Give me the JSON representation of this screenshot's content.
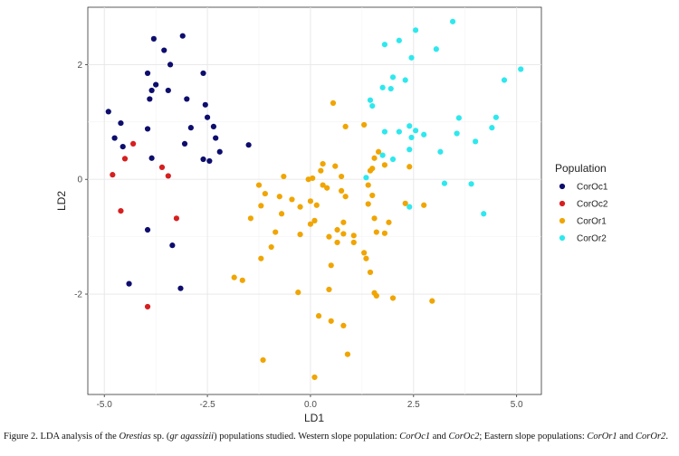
{
  "chart_data": {
    "type": "scatter",
    "xlabel": "LD1",
    "ylabel": "LD2",
    "xlim": [
      -5.4,
      5.6
    ],
    "ylim": [
      -3.75,
      3.0
    ],
    "xticks": [
      -5.0,
      -2.5,
      0.0,
      2.5,
      5.0
    ],
    "xtick_labels": [
      "-5.0",
      "-2.5",
      "0.0",
      "2.5",
      "5.0"
    ],
    "yticks": [
      -2,
      0,
      2
    ],
    "ytick_labels": [
      "-2",
      "0",
      "2"
    ],
    "grid": true,
    "legend_title": "Population",
    "legend_placement": "right",
    "series": [
      {
        "name": "CorOc1",
        "color": "#0d0d6e",
        "points": [
          [
            -3.1,
            2.5
          ],
          [
            -3.8,
            2.45
          ],
          [
            -3.55,
            2.25
          ],
          [
            -3.4,
            2.0
          ],
          [
            -3.95,
            1.85
          ],
          [
            -3.75,
            1.65
          ],
          [
            -3.85,
            1.55
          ],
          [
            -3.45,
            1.55
          ],
          [
            -2.6,
            1.85
          ],
          [
            -3.9,
            1.4
          ],
          [
            -3.0,
            1.4
          ],
          [
            -4.9,
            1.18
          ],
          [
            -2.55,
            1.3
          ],
          [
            -2.5,
            1.08
          ],
          [
            -2.35,
            0.92
          ],
          [
            -4.6,
            0.98
          ],
          [
            -2.9,
            0.9
          ],
          [
            -3.95,
            0.88
          ],
          [
            -4.75,
            0.72
          ],
          [
            -2.3,
            0.72
          ],
          [
            -3.05,
            0.62
          ],
          [
            -4.55,
            0.57
          ],
          [
            -1.5,
            0.6
          ],
          [
            -2.2,
            0.48
          ],
          [
            -3.85,
            0.37
          ],
          [
            -2.6,
            0.35
          ],
          [
            -2.45,
            0.32
          ],
          [
            -3.95,
            -0.88
          ],
          [
            -3.35,
            -1.15
          ],
          [
            -4.4,
            -1.82
          ],
          [
            -3.15,
            -1.9
          ]
        ]
      },
      {
        "name": "CorOc2",
        "color": "#d61f1f",
        "points": [
          [
            -4.3,
            0.62
          ],
          [
            -4.5,
            0.36
          ],
          [
            -3.6,
            0.21
          ],
          [
            -4.8,
            0.08
          ],
          [
            -3.45,
            0.06
          ],
          [
            -4.6,
            -0.55
          ],
          [
            -3.25,
            -0.68
          ],
          [
            -3.95,
            -2.22
          ]
        ]
      },
      {
        "name": "CorOr1",
        "color": "#f0a500",
        "points": [
          [
            0.55,
            1.33
          ],
          [
            0.85,
            0.92
          ],
          [
            1.3,
            0.95
          ],
          [
            1.55,
            0.37
          ],
          [
            1.65,
            0.48
          ],
          [
            1.8,
            0.25
          ],
          [
            2.4,
            0.22
          ],
          [
            1.5,
            0.19
          ],
          [
            1.45,
            0.15
          ],
          [
            0.3,
            0.27
          ],
          [
            0.6,
            0.23
          ],
          [
            0.25,
            0.15
          ],
          [
            0.75,
            0.05
          ],
          [
            -0.65,
            0.05
          ],
          [
            0.05,
            0.02
          ],
          [
            -0.05,
            0.0
          ],
          [
            0.3,
            -0.1
          ],
          [
            0.4,
            -0.15
          ],
          [
            0.75,
            -0.2
          ],
          [
            0.85,
            -0.3
          ],
          [
            -1.25,
            -0.1
          ],
          [
            -1.1,
            -0.25
          ],
          [
            1.4,
            -0.1
          ],
          [
            1.5,
            -0.28
          ],
          [
            -0.75,
            -0.3
          ],
          [
            -0.45,
            -0.35
          ],
          [
            0.0,
            -0.38
          ],
          [
            0.15,
            -0.45
          ],
          [
            -1.2,
            -0.46
          ],
          [
            1.4,
            -0.43
          ],
          [
            2.3,
            -0.42
          ],
          [
            2.75,
            -0.45
          ],
          [
            -0.25,
            -0.48
          ],
          [
            -0.7,
            -0.6
          ],
          [
            1.55,
            -0.68
          ],
          [
            0.1,
            -0.72
          ],
          [
            0.0,
            -0.78
          ],
          [
            -1.45,
            -0.68
          ],
          [
            0.8,
            -0.75
          ],
          [
            1.9,
            -0.75
          ],
          [
            0.65,
            -0.88
          ],
          [
            -0.85,
            -0.92
          ],
          [
            1.6,
            -0.92
          ],
          [
            1.8,
            -0.94
          ],
          [
            -0.25,
            -0.96
          ],
          [
            0.8,
            -0.95
          ],
          [
            1.05,
            -0.98
          ],
          [
            0.45,
            -1.0
          ],
          [
            -0.95,
            -1.18
          ],
          [
            0.65,
            -1.1
          ],
          [
            1.05,
            -1.1
          ],
          [
            1.3,
            -1.28
          ],
          [
            1.35,
            -1.38
          ],
          [
            0.5,
            -1.5
          ],
          [
            1.45,
            -1.62
          ],
          [
            -1.2,
            -1.38
          ],
          [
            -1.65,
            -1.76
          ],
          [
            -1.85,
            -1.71
          ],
          [
            -0.3,
            -1.97
          ],
          [
            0.45,
            -1.92
          ],
          [
            1.55,
            -1.98
          ],
          [
            1.6,
            -2.03
          ],
          [
            2.0,
            -2.07
          ],
          [
            2.95,
            -2.12
          ],
          [
            0.2,
            -2.38
          ],
          [
            0.5,
            -2.47
          ],
          [
            0.8,
            -2.55
          ],
          [
            0.9,
            -3.05
          ],
          [
            -1.15,
            -3.15
          ],
          [
            0.1,
            -3.45
          ]
        ]
      },
      {
        "name": "CorOr2",
        "color": "#2ee8ee",
        "points": [
          [
            3.45,
            2.75
          ],
          [
            2.55,
            2.6
          ],
          [
            2.15,
            2.42
          ],
          [
            1.8,
            2.35
          ],
          [
            3.05,
            2.27
          ],
          [
            2.45,
            2.12
          ],
          [
            5.1,
            1.92
          ],
          [
            2.0,
            1.78
          ],
          [
            4.7,
            1.73
          ],
          [
            2.3,
            1.73
          ],
          [
            1.75,
            1.6
          ],
          [
            1.95,
            1.58
          ],
          [
            1.45,
            1.38
          ],
          [
            1.5,
            1.28
          ],
          [
            3.6,
            1.07
          ],
          [
            4.5,
            1.08
          ],
          [
            2.4,
            0.93
          ],
          [
            4.4,
            0.9
          ],
          [
            1.8,
            0.83
          ],
          [
            2.15,
            0.83
          ],
          [
            2.55,
            0.85
          ],
          [
            2.75,
            0.78
          ],
          [
            2.45,
            0.73
          ],
          [
            3.55,
            0.8
          ],
          [
            4.0,
            0.66
          ],
          [
            2.4,
            0.52
          ],
          [
            3.15,
            0.48
          ],
          [
            1.75,
            0.42
          ],
          [
            2.0,
            0.35
          ],
          [
            1.35,
            0.03
          ],
          [
            3.25,
            -0.07
          ],
          [
            3.9,
            -0.08
          ],
          [
            2.4,
            -0.48
          ],
          [
            4.2,
            -0.6
          ]
        ]
      }
    ]
  },
  "caption": {
    "t1": "Figure 2. LDA analysis of the ",
    "t2": "Orestias",
    "t3": " sp. (",
    "t4": "gr agassizii",
    "t5": ") populations studied. Western slope population: ",
    "t6": "CorOc1",
    "t7": " and ",
    "t8": "CorOc2",
    "t9": "; Eastern slope populations: ",
    "t10": "CorOr1",
    "t11": " and ",
    "t12": "CorOr2",
    "t13": "."
  }
}
